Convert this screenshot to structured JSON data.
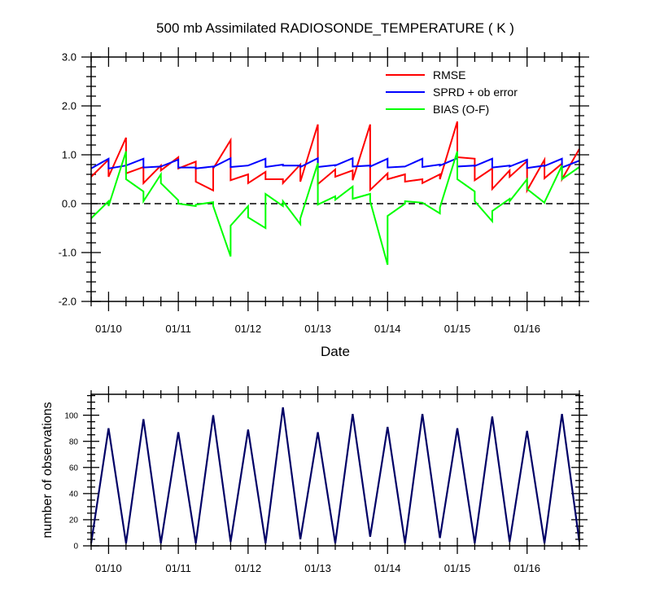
{
  "chart_data": [
    {
      "type": "line",
      "title": "500 mb Assimilated RADIOSONDE_TEMPERATURE ( K )",
      "xlabel": "Date",
      "ylabel": "",
      "ylim": [
        -2.0,
        3.0
      ],
      "xlim": [
        0.0,
        7.0
      ],
      "ytick_values": [
        -2.0,
        -1.0,
        0.0,
        1.0,
        2.0,
        3.0
      ],
      "ytick_labels": [
        "-2.0",
        "-1.0",
        "0.0",
        "1.0",
        "2.0",
        "3.0"
      ],
      "xtick_values": [
        0.25,
        1.25,
        2.25,
        3.25,
        4.25,
        5.25,
        6.25
      ],
      "xtick_labels": [
        "01/10",
        "01/11",
        "01/12",
        "01/13",
        "01/14",
        "01/15",
        "01/16"
      ],
      "zero_line": true,
      "legend_position": "top-right",
      "series": [
        {
          "name": "RMSE",
          "color": "#ff0000",
          "x": [
            0.0,
            0.25,
            0.25,
            0.5,
            0.5,
            0.75,
            0.75,
            1.0,
            1.0,
            1.25,
            1.25,
            1.5,
            1.5,
            1.75,
            1.75,
            2.0,
            2.0,
            2.25,
            2.25,
            2.5,
            2.5,
            2.75,
            2.75,
            3.0,
            3.0,
            3.25,
            3.25,
            3.5,
            3.5,
            3.75,
            3.75,
            4.0,
            4.0,
            4.25,
            4.25,
            4.5,
            4.5,
            4.75,
            4.75,
            5.0,
            5.0,
            5.25,
            5.25,
            5.5,
            5.5,
            5.75,
            5.75,
            6.0,
            6.0,
            6.25,
            6.25,
            6.5,
            6.5,
            6.75,
            6.75,
            7.0
          ],
          "y": [
            0.55,
            0.9,
            0.55,
            1.35,
            0.62,
            0.75,
            0.42,
            0.78,
            0.68,
            0.95,
            0.72,
            0.86,
            0.45,
            0.27,
            0.72,
            1.3,
            0.48,
            0.6,
            0.42,
            0.65,
            0.5,
            0.5,
            0.42,
            0.8,
            0.45,
            1.62,
            0.4,
            0.7,
            0.55,
            0.68,
            0.48,
            1.62,
            0.28,
            0.62,
            0.5,
            0.6,
            0.45,
            0.5,
            0.42,
            0.6,
            0.5,
            1.68,
            0.95,
            0.92,
            0.48,
            0.72,
            0.3,
            0.68,
            0.55,
            0.87,
            0.27,
            0.9,
            0.52,
            0.82,
            0.5,
            1.12
          ]
        },
        {
          "name": "SPRD + ob error",
          "color": "#0000ff",
          "x": [
            0.0,
            0.25,
            0.25,
            0.5,
            0.5,
            0.75,
            0.75,
            1.0,
            1.0,
            1.25,
            1.25,
            1.5,
            1.5,
            1.75,
            1.75,
            2.0,
            2.0,
            2.25,
            2.25,
            2.5,
            2.5,
            2.75,
            2.75,
            3.0,
            3.0,
            3.25,
            3.25,
            3.5,
            3.5,
            3.75,
            3.75,
            4.0,
            4.0,
            4.25,
            4.25,
            4.5,
            4.5,
            4.75,
            4.75,
            5.0,
            5.0,
            5.25,
            5.25,
            5.5,
            5.5,
            5.75,
            5.75,
            6.0,
            6.0,
            6.25,
            6.25,
            6.5,
            6.5,
            6.75,
            6.75,
            7.0
          ],
          "y": [
            0.72,
            0.92,
            0.72,
            0.78,
            0.78,
            0.92,
            0.74,
            0.76,
            0.76,
            0.9,
            0.74,
            0.74,
            0.72,
            0.76,
            0.75,
            0.93,
            0.75,
            0.78,
            0.78,
            0.92,
            0.75,
            0.8,
            0.78,
            0.78,
            0.75,
            0.93,
            0.75,
            0.79,
            0.78,
            0.93,
            0.76,
            0.78,
            0.76,
            0.92,
            0.74,
            0.76,
            0.76,
            0.92,
            0.75,
            0.8,
            0.78,
            0.93,
            0.76,
            0.78,
            0.77,
            0.92,
            0.74,
            0.78,
            0.76,
            0.9,
            0.73,
            0.78,
            0.77,
            0.92,
            0.74,
            0.88
          ]
        },
        {
          "name": "BIAS (O-F)",
          "color": "#00ff00",
          "x": [
            0.0,
            0.25,
            0.25,
            0.5,
            0.5,
            0.75,
            0.75,
            1.0,
            1.0,
            1.25,
            1.25,
            1.5,
            1.5,
            1.75,
            1.75,
            2.0,
            2.0,
            2.25,
            2.25,
            2.5,
            2.5,
            2.75,
            2.75,
            3.0,
            3.0,
            3.25,
            3.25,
            3.5,
            3.5,
            3.75,
            3.75,
            4.0,
            4.0,
            4.25,
            4.25,
            4.5,
            4.5,
            4.75,
            4.75,
            5.0,
            5.0,
            5.25,
            5.25,
            5.5,
            5.5,
            5.75,
            5.75,
            6.0,
            6.0,
            6.25,
            6.25,
            6.5,
            6.5,
            6.75,
            6.75,
            7.0
          ],
          "y": [
            -0.3,
            0.05,
            -0.05,
            1.07,
            0.5,
            0.25,
            0.05,
            0.6,
            0.42,
            0.07,
            0.0,
            -0.05,
            -0.02,
            0.03,
            -0.05,
            -1.08,
            -0.45,
            -0.05,
            -0.28,
            -0.5,
            0.2,
            -0.05,
            0.05,
            -0.42,
            -0.3,
            0.83,
            -0.02,
            0.15,
            0.08,
            0.35,
            0.1,
            0.2,
            0.05,
            -1.25,
            -0.25,
            0.0,
            0.05,
            0.02,
            0.02,
            -0.2,
            -0.08,
            1.07,
            0.5,
            0.25,
            0.05,
            -0.36,
            -0.15,
            0.1,
            0.05,
            0.5,
            0.3,
            0.02,
            0.03,
            0.78,
            0.5,
            0.75
          ]
        }
      ]
    },
    {
      "type": "line",
      "title": "",
      "xlabel": "",
      "ylabel": "number of observations",
      "ylim": [
        0,
        116
      ],
      "xlim": [
        0.0,
        7.0
      ],
      "ytick_values": [
        0,
        20,
        40,
        60,
        80,
        100
      ],
      "ytick_labels": [
        "0",
        "20",
        "40",
        "60",
        "80",
        "100"
      ],
      "xtick_values": [
        0.25,
        1.25,
        2.25,
        3.25,
        4.25,
        5.25,
        6.25
      ],
      "xtick_labels": [
        "01/10",
        "01/11",
        "01/12",
        "01/13",
        "01/14",
        "01/15",
        "01/16"
      ],
      "series": [
        {
          "name": "observations",
          "color": "#000066",
          "x": [
            0.0,
            0.25,
            0.5,
            0.75,
            1.0,
            1.25,
            1.5,
            1.75,
            2.0,
            2.25,
            2.5,
            2.75,
            3.0,
            3.25,
            3.5,
            3.75,
            4.0,
            4.25,
            4.5,
            4.75,
            5.0,
            5.25,
            5.5,
            5.75,
            6.0,
            6.25,
            6.5,
            6.75,
            7.0
          ],
          "y": [
            2,
            90,
            2,
            97,
            2,
            87,
            2,
            100,
            3,
            89,
            2,
            106,
            5,
            87,
            2,
            101,
            7,
            91,
            2,
            101,
            6,
            90,
            2,
            99,
            3,
            88,
            2,
            101,
            3
          ]
        }
      ]
    }
  ]
}
